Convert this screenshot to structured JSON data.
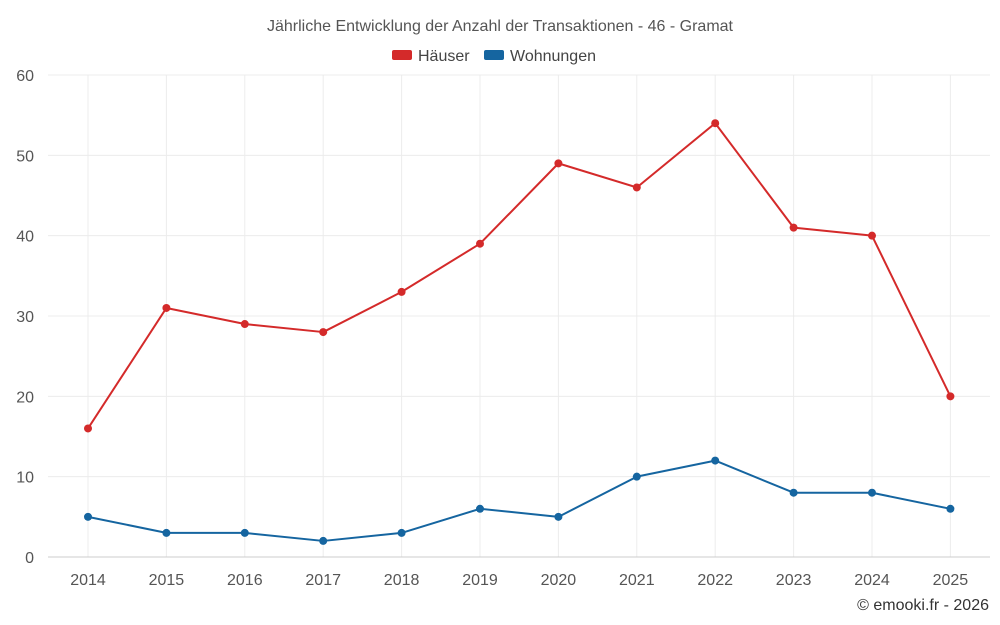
{
  "chart_data": {
    "type": "line",
    "title": "Jährliche Entwicklung der Anzahl der Transaktionen - 46 - Gramat",
    "xlabel": "",
    "ylabel": "",
    "categories": [
      "2014",
      "2015",
      "2016",
      "2017",
      "2018",
      "2019",
      "2020",
      "2021",
      "2022",
      "2023",
      "2024",
      "2025"
    ],
    "ylim": [
      0,
      60
    ],
    "yticks": [
      0,
      10,
      20,
      30,
      40,
      50,
      60
    ],
    "grid": true,
    "legend_position": "top-center",
    "series": [
      {
        "name": "Häuser",
        "color": "#d42a2a",
        "values": [
          16,
          31,
          29,
          28,
          33,
          39,
          49,
          46,
          54,
          41,
          40,
          20
        ]
      },
      {
        "name": "Wohnungen",
        "color": "#1565a0",
        "values": [
          5,
          3,
          3,
          2,
          3,
          6,
          5,
          10,
          12,
          8,
          8,
          6
        ]
      }
    ]
  },
  "credit": "© emooki.fr - 2026"
}
